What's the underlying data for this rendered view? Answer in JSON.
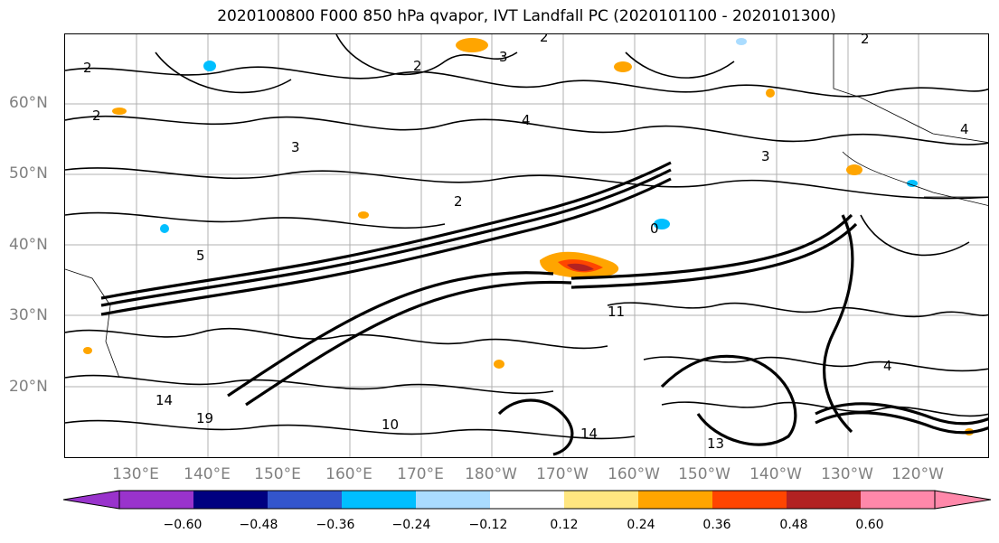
{
  "title": "2020100800 F000 850 hPa qvapor, IVT Landfall PC (2020101100 - 2020101300)",
  "lat_labels": [
    "60°N",
    "50°N",
    "40°N",
    "30°N",
    "20°N"
  ],
  "lon_labels": [
    "130°E",
    "140°E",
    "150°E",
    "160°E",
    "170°E",
    "180°W",
    "170°W",
    "160°W",
    "150°W",
    "140°W",
    "130°W",
    "120°W"
  ],
  "colorbar": {
    "ticks": [
      "−0.60",
      "−0.48",
      "−0.36",
      "−0.24",
      "−0.12",
      "0.12",
      "0.24",
      "0.36",
      "0.48",
      "0.60"
    ],
    "colors": [
      "#9933cc",
      "#000080",
      "#3355cc",
      "#00bfff",
      "#aadcff",
      "#ffffff",
      "#ffe680",
      "#ffa500",
      "#ff4500",
      "#b22222",
      "#ff88aa"
    ]
  },
  "contour_labels": [
    "2",
    "2",
    "3",
    "4",
    "2",
    "3",
    "3",
    "2",
    "4",
    "14",
    "19",
    "11",
    "13",
    "4",
    "5",
    "0",
    "2",
    "2",
    "10",
    "14"
  ]
}
